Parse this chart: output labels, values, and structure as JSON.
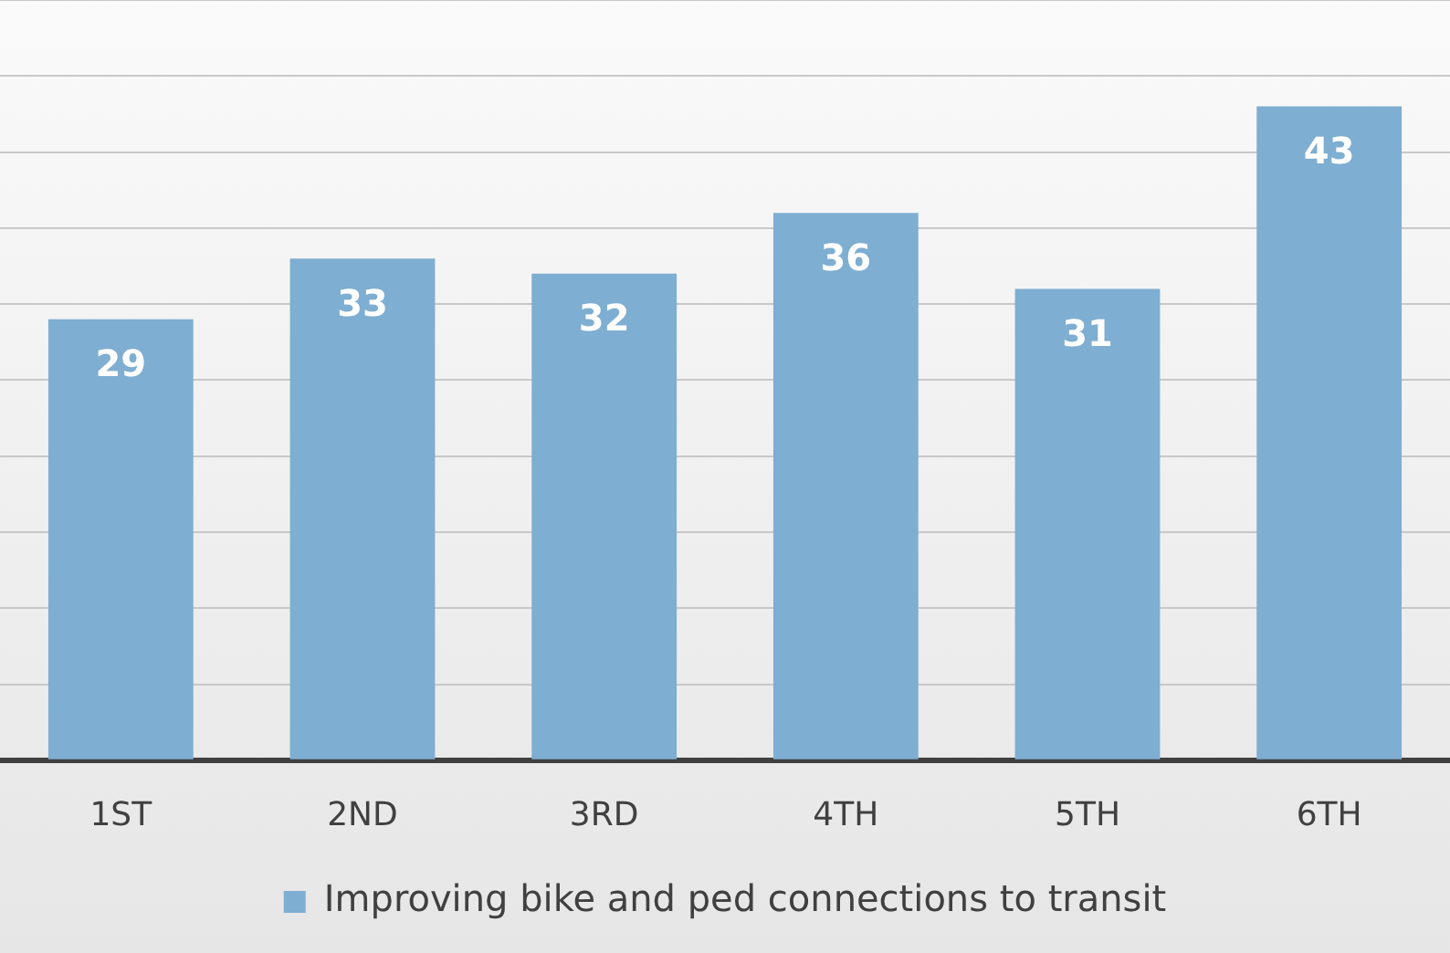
{
  "chart_data": {
    "type": "bar",
    "categories": [
      "1ST",
      "2ND",
      "3RD",
      "4TH",
      "5TH",
      "6TH"
    ],
    "series": [
      {
        "name": "Improving bike and ped connections to transit",
        "color": "#7eaed1",
        "values": [
          29,
          33,
          32,
          36,
          31,
          43
        ]
      }
    ],
    "ylim": [
      0,
      50
    ],
    "yticks": [
      {
        "value": 0,
        "label": null
      },
      {
        "value": 5,
        "label": null
      },
      {
        "value": 10,
        "label": null
      },
      {
        "value": 15,
        "label": null
      },
      {
        "value": 20,
        "label": null
      },
      {
        "value": 25,
        "label": null
      },
      {
        "value": 30,
        "label": null
      },
      {
        "value": 35,
        "label": null
      },
      {
        "value": 40,
        "label": null
      },
      {
        "value": 45,
        "label": null
      },
      {
        "value": 50,
        "label": null
      }
    ],
    "tick_labels": "x",
    "grid": "y",
    "data_labels": true,
    "legend": "bottom"
  }
}
